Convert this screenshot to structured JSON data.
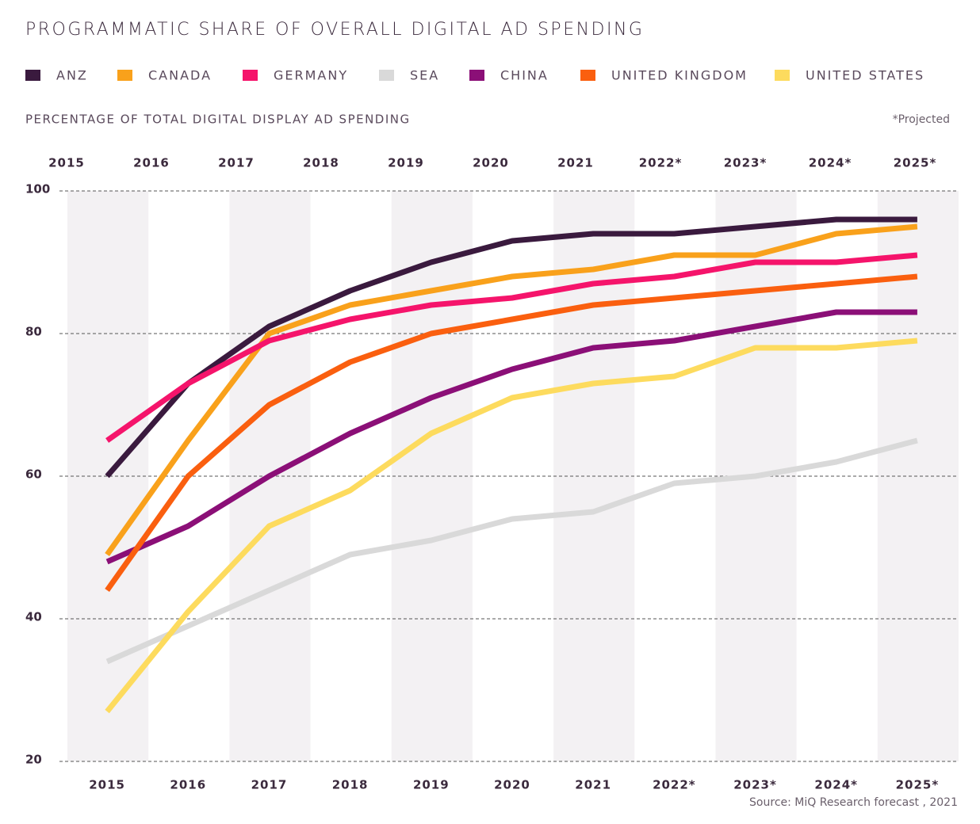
{
  "chart_data": {
    "type": "line",
    "title": "PROGRAMMATIC SHARE OF OVERALL DIGITAL AD SPENDING",
    "subtitle": "PERCENTAGE OF TOTAL DIGITAL DISPLAY AD SPENDING",
    "note": "*Projected",
    "source": "Source: MiQ Research forecast , 2021",
    "categories": [
      "2015",
      "2016",
      "2017",
      "2018",
      "2019",
      "2020",
      "2021",
      "2022*",
      "2023*",
      "2024*",
      "2025*"
    ],
    "series": [
      {
        "name": "ANZ",
        "color": "#3a1a3e",
        "values": [
          60,
          73,
          81,
          86,
          90,
          93,
          94,
          94,
          95,
          96,
          96
        ]
      },
      {
        "name": "CANADA",
        "color": "#f9a11b",
        "values": [
          49,
          65,
          80,
          84,
          86,
          88,
          89,
          91,
          91,
          94,
          95
        ]
      },
      {
        "name": "GERMANY",
        "color": "#f5146b",
        "values": [
          65,
          73,
          79,
          82,
          84,
          85,
          87,
          88,
          90,
          90,
          91
        ]
      },
      {
        "name": "SEA",
        "color": "#d9d9d9",
        "values": [
          34,
          39,
          44,
          49,
          51,
          54,
          55,
          59,
          60,
          62,
          65
        ]
      },
      {
        "name": "CHINA",
        "color": "#8b0f77",
        "values": [
          48,
          53,
          60,
          66,
          71,
          75,
          78,
          79,
          81,
          83,
          83
        ]
      },
      {
        "name": "UNITED KINGDOM",
        "color": "#fa5f0f",
        "values": [
          44,
          60,
          70,
          76,
          80,
          82,
          84,
          85,
          86,
          87,
          88
        ]
      },
      {
        "name": "UNITED STATES",
        "color": "#fddb5e",
        "values": [
          27,
          41,
          53,
          58,
          66,
          71,
          73,
          74,
          78,
          78,
          79
        ]
      }
    ],
    "ylim": [
      20,
      100
    ],
    "yticks": [
      20,
      40,
      60,
      80,
      100
    ],
    "grid": true
  }
}
